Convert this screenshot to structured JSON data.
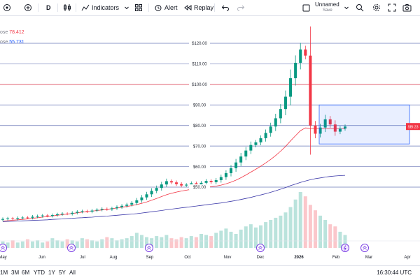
{
  "toolbar": {
    "interval": "D",
    "indicators_label": "Indicators",
    "alert_label": "Alert",
    "replay_label": "Replay",
    "layout_name": "Unnamed",
    "layout_status": "Save"
  },
  "legend": {
    "line1_label": "ose",
    "line1_value": "78.412",
    "line2_label": "ose",
    "line2_value": "55.731"
  },
  "chart_data": {
    "type": "candlestick",
    "y_ticks": [
      "$120.00",
      "$110.00",
      "$100.00",
      "$90.00",
      "$80.00",
      "$70.00",
      "$60.00",
      "$50.00"
    ],
    "x_ticks": [
      "May",
      "Jun",
      "Jul",
      "Aug",
      "Sep",
      "Oct",
      "Nov",
      "Dec",
      "2026",
      "Feb",
      "Mar",
      "Apr"
    ],
    "ylim": [
      40,
      125
    ],
    "current_price_label": "SBI:23",
    "red_horizontal_level": 100,
    "selection_range": {
      "low": 71,
      "high": 90,
      "from": "Jan",
      "to": "Mar"
    },
    "close_series": [
      34.5,
      34.8,
      34.6,
      35.0,
      35.2,
      35.1,
      35.6,
      35.9,
      36.2,
      36.0,
      36.4,
      36.8,
      37.1,
      37.0,
      37.5,
      38.0,
      38.3,
      38.1,
      38.6,
      39.0,
      39.4,
      39.2,
      39.7,
      40.3,
      40.9,
      41.5,
      42.3,
      43.6,
      45.0,
      46.5,
      48.2,
      49.6,
      51.3,
      52.9,
      52.3,
      51.5,
      50.8,
      51.2,
      51.9,
      51.4,
      52.1,
      53.0,
      52.4,
      53.4,
      54.9,
      56.8,
      59.2,
      62.0,
      64.9,
      67.8,
      70.5,
      71.8,
      73.8,
      76.4,
      79.5,
      83.5,
      88.0,
      94.0,
      103.0,
      110.5,
      117.0,
      114.0,
      80.0,
      76.0,
      79.0,
      83.0,
      80.5,
      77.0,
      78.5,
      79.5
    ],
    "ma_fast_series": [
      33.5,
      33.7,
      33.9,
      34.1,
      34.3,
      34.5,
      34.8,
      35.1,
      35.4,
      35.7,
      36.0,
      36.3,
      36.6,
      36.9,
      37.2,
      37.5,
      37.8,
      38.0,
      38.3,
      38.6,
      38.9,
      39.2,
      39.5,
      39.8,
      40.2,
      40.6,
      41.0,
      41.5,
      42.1,
      42.8,
      43.6,
      44.5,
      45.4,
      46.3,
      47.0,
      47.6,
      48.1,
      48.5,
      48.9,
      49.2,
      49.5,
      49.9,
      50.2,
      50.5,
      51.0,
      51.6,
      52.4,
      53.4,
      54.6,
      55.9,
      57.3,
      58.7,
      60.2,
      61.8,
      63.5,
      65.4,
      67.5,
      69.8,
      72.5,
      75.0,
      77.5,
      78.8,
      78.6,
      78.5,
      78.4,
      78.4,
      78.41,
      78.41,
      78.41,
      78.41
    ],
    "ma_slow_series": [
      33.2,
      33.3,
      33.4,
      33.5,
      33.6,
      33.7,
      33.8,
      33.9,
      34.0,
      34.1,
      34.3,
      34.4,
      34.5,
      34.7,
      34.8,
      35.0,
      35.1,
      35.3,
      35.4,
      35.6,
      35.8,
      35.9,
      36.1,
      36.3,
      36.5,
      36.7,
      36.9,
      37.1,
      37.4,
      37.7,
      38.0,
      38.3,
      38.6,
      39.0,
      39.3,
      39.6,
      39.9,
      40.2,
      40.5,
      40.8,
      41.1,
      41.4,
      41.7,
      42.0,
      42.3,
      42.7,
      43.1,
      43.5,
      44.0,
      44.5,
      45.0,
      45.6,
      46.2,
      46.8,
      47.5,
      48.2,
      49.0,
      49.8,
      50.7,
      51.5,
      52.3,
      53.0,
      53.6,
      54.1,
      54.5,
      54.9,
      55.2,
      55.45,
      55.6,
      55.73
    ],
    "volume_series": [
      6,
      5,
      7,
      5,
      6,
      8,
      6,
      7,
      5,
      6,
      9,
      7,
      6,
      8,
      7,
      6,
      9,
      8,
      7,
      6,
      8,
      10,
      9,
      7,
      8,
      9,
      11,
      14,
      12,
      10,
      9,
      11,
      10,
      12,
      9,
      8,
      10,
      9,
      11,
      10,
      13,
      12,
      11,
      14,
      16,
      18,
      15,
      13,
      17,
      20,
      22,
      19,
      21,
      24,
      26,
      28,
      30,
      33,
      38,
      45,
      52,
      48,
      40,
      35,
      30,
      26,
      22,
      20,
      15,
      12
    ]
  },
  "bottom": {
    "ranges": [
      "1M",
      "3M",
      "6M",
      "YTD",
      "1Y",
      "5Y",
      "All"
    ],
    "clock": "16:30:44 UTC"
  }
}
